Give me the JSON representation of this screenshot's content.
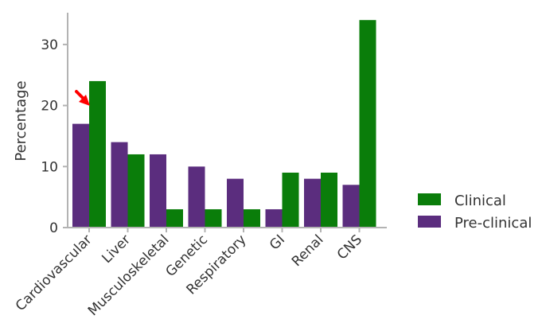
{
  "chart_data": {
    "type": "bar",
    "title": "",
    "xlabel": "",
    "ylabel": "Percentage",
    "ylim": [
      0,
      35
    ],
    "yticks": [
      0,
      10,
      20,
      30
    ],
    "categories": [
      "Cardiovascular",
      "Liver",
      "Musculoskeletal",
      "Genetic",
      "Respiratory",
      "GI",
      "Renal",
      "CNS"
    ],
    "series": [
      {
        "name": "Pre-clinical",
        "color": "#5b2d7e",
        "values": [
          17,
          14,
          12,
          10,
          8,
          3,
          8,
          7
        ]
      },
      {
        "name": "Clinical",
        "color": "#0a7d0a",
        "values": [
          24,
          12,
          3,
          3,
          3,
          9,
          9,
          34
        ]
      }
    ],
    "legend": {
      "position": "right",
      "order": [
        "Clinical",
        "Pre-clinical"
      ]
    },
    "grid": false,
    "annotation": {
      "type": "arrow",
      "target_category": "Cardiovascular",
      "color": "#ff0000"
    }
  }
}
